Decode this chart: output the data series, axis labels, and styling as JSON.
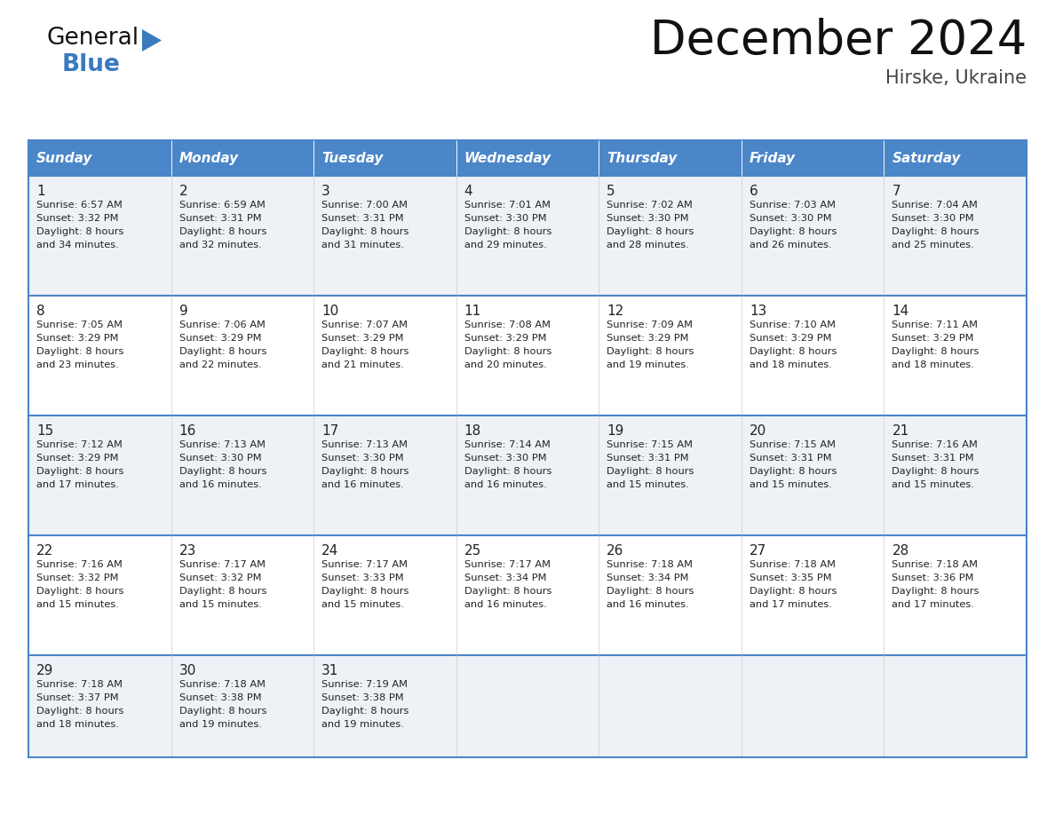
{
  "title": "December 2024",
  "subtitle": "Hirske, Ukraine",
  "days_of_week": [
    "Sunday",
    "Monday",
    "Tuesday",
    "Wednesday",
    "Thursday",
    "Friday",
    "Saturday"
  ],
  "header_bg": "#4a86c8",
  "header_text": "#ffffff",
  "row_bg_light": "#eef2f7",
  "row_bg_white": "#ffffff",
  "border_color": "#4a86c8",
  "day_num_color": "#222222",
  "cell_text_color": "#222222",
  "title_color": "#111111",
  "subtitle_color": "#444444",
  "calendar_data": [
    [
      {
        "day": 1,
        "sunrise": "6:57 AM",
        "sunset": "3:32 PM",
        "daylight_suffix": "34 minutes."
      },
      {
        "day": 2,
        "sunrise": "6:59 AM",
        "sunset": "3:31 PM",
        "daylight_suffix": "32 minutes."
      },
      {
        "day": 3,
        "sunrise": "7:00 AM",
        "sunset": "3:31 PM",
        "daylight_suffix": "31 minutes."
      },
      {
        "day": 4,
        "sunrise": "7:01 AM",
        "sunset": "3:30 PM",
        "daylight_suffix": "29 minutes."
      },
      {
        "day": 5,
        "sunrise": "7:02 AM",
        "sunset": "3:30 PM",
        "daylight_suffix": "28 minutes."
      },
      {
        "day": 6,
        "sunrise": "7:03 AM",
        "sunset": "3:30 PM",
        "daylight_suffix": "26 minutes."
      },
      {
        "day": 7,
        "sunrise": "7:04 AM",
        "sunset": "3:30 PM",
        "daylight_suffix": "25 minutes."
      }
    ],
    [
      {
        "day": 8,
        "sunrise": "7:05 AM",
        "sunset": "3:29 PM",
        "daylight_suffix": "23 minutes."
      },
      {
        "day": 9,
        "sunrise": "7:06 AM",
        "sunset": "3:29 PM",
        "daylight_suffix": "22 minutes."
      },
      {
        "day": 10,
        "sunrise": "7:07 AM",
        "sunset": "3:29 PM",
        "daylight_suffix": "21 minutes."
      },
      {
        "day": 11,
        "sunrise": "7:08 AM",
        "sunset": "3:29 PM",
        "daylight_suffix": "20 minutes."
      },
      {
        "day": 12,
        "sunrise": "7:09 AM",
        "sunset": "3:29 PM",
        "daylight_suffix": "19 minutes."
      },
      {
        "day": 13,
        "sunrise": "7:10 AM",
        "sunset": "3:29 PM",
        "daylight_suffix": "18 minutes."
      },
      {
        "day": 14,
        "sunrise": "7:11 AM",
        "sunset": "3:29 PM",
        "daylight_suffix": "18 minutes."
      }
    ],
    [
      {
        "day": 15,
        "sunrise": "7:12 AM",
        "sunset": "3:29 PM",
        "daylight_suffix": "17 minutes."
      },
      {
        "day": 16,
        "sunrise": "7:13 AM",
        "sunset": "3:30 PM",
        "daylight_suffix": "16 minutes."
      },
      {
        "day": 17,
        "sunrise": "7:13 AM",
        "sunset": "3:30 PM",
        "daylight_suffix": "16 minutes."
      },
      {
        "day": 18,
        "sunrise": "7:14 AM",
        "sunset": "3:30 PM",
        "daylight_suffix": "16 minutes."
      },
      {
        "day": 19,
        "sunrise": "7:15 AM",
        "sunset": "3:31 PM",
        "daylight_suffix": "15 minutes."
      },
      {
        "day": 20,
        "sunrise": "7:15 AM",
        "sunset": "3:31 PM",
        "daylight_suffix": "15 minutes."
      },
      {
        "day": 21,
        "sunrise": "7:16 AM",
        "sunset": "3:31 PM",
        "daylight_suffix": "15 minutes."
      }
    ],
    [
      {
        "day": 22,
        "sunrise": "7:16 AM",
        "sunset": "3:32 PM",
        "daylight_suffix": "15 minutes."
      },
      {
        "day": 23,
        "sunrise": "7:17 AM",
        "sunset": "3:32 PM",
        "daylight_suffix": "15 minutes."
      },
      {
        "day": 24,
        "sunrise": "7:17 AM",
        "sunset": "3:33 PM",
        "daylight_suffix": "15 minutes."
      },
      {
        "day": 25,
        "sunrise": "7:17 AM",
        "sunset": "3:34 PM",
        "daylight_suffix": "16 minutes."
      },
      {
        "day": 26,
        "sunrise": "7:18 AM",
        "sunset": "3:34 PM",
        "daylight_suffix": "16 minutes."
      },
      {
        "day": 27,
        "sunrise": "7:18 AM",
        "sunset": "3:35 PM",
        "daylight_suffix": "17 minutes."
      },
      {
        "day": 28,
        "sunrise": "7:18 AM",
        "sunset": "3:36 PM",
        "daylight_suffix": "17 minutes."
      }
    ],
    [
      {
        "day": 29,
        "sunrise": "7:18 AM",
        "sunset": "3:37 PM",
        "daylight_suffix": "18 minutes."
      },
      {
        "day": 30,
        "sunrise": "7:18 AM",
        "sunset": "3:38 PM",
        "daylight_suffix": "19 minutes."
      },
      {
        "day": 31,
        "sunrise": "7:19 AM",
        "sunset": "3:38 PM",
        "daylight_suffix": "19 minutes."
      },
      null,
      null,
      null,
      null
    ]
  ],
  "logo_general_color": "#111111",
  "logo_blue_color": "#3a7abf",
  "fig_width": 11.88,
  "fig_height": 9.18,
  "dpi": 100
}
